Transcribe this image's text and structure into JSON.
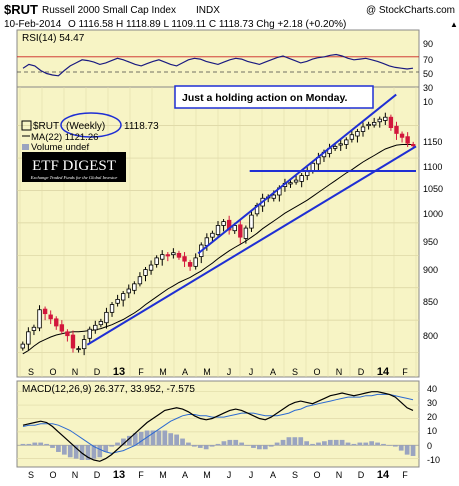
{
  "header": {
    "symbol": "$RUT",
    "name": "Russell 2000 Small Cap Index",
    "exchange": "INDX",
    "copyright": "@ StockCharts.com",
    "date": "10-Feb-2014",
    "ohlc": "O 1116.58  H 1118.89  L 1109.11  C 1118.73  Chg +2.18 (+0.20%)",
    "ohlc_arrow": "▲"
  },
  "rsi_panel": {
    "label": "RSI(14) 54.47",
    "ticks": [
      "90",
      "70",
      "50",
      "30",
      "10"
    ]
  },
  "price_panel": {
    "annotation": "Just a holding action on Monday.",
    "legend_symbol": "$RUT",
    "legend_period": "(Weekly)",
    "legend_value": "1118.73",
    "legend_ma": "MA(22) 1121.26",
    "legend_volume": "Volume undef",
    "logo_title": "ETF DIGEST",
    "logo_sub": "Exchange Traded Funds for the Global Investor",
    "ticks": [
      "1150",
      "1100",
      "1050",
      "1000",
      "950",
      "900",
      "850",
      "800"
    ]
  },
  "macd_panel": {
    "label": "MACD(12,26,9) 26.377, 33.952, -7.575",
    "ticks": [
      "40",
      "30",
      "20",
      "10",
      "0",
      "-10"
    ]
  },
  "x_axis": {
    "labels": [
      "S",
      "O",
      "N",
      "D",
      "13",
      "F",
      "M",
      "A",
      "M",
      "J",
      "J",
      "A",
      "S",
      "O",
      "N",
      "D",
      "14",
      "F"
    ]
  },
  "colors": {
    "panel_bg": "#f7f4c5",
    "up_candle": "#000000",
    "down_candle": "#d2163c",
    "trendline": "#1f2fd4",
    "ma_line": "#000000",
    "rsi_line": "#1a1a80",
    "macd_line": "#000000",
    "signal_line": "#2d6bd1",
    "histogram": "#9aa4c0"
  },
  "chart_data": [
    {
      "type": "candlestick",
      "title": "$RUT Russell 2000 Small Cap Index INDX",
      "period": "Weekly",
      "ylim": [
        770,
        1205
      ],
      "close": [
        813,
        832,
        839,
        866,
        860,
        852,
        841,
        833,
        826,
        807,
        806,
        820,
        836,
        842,
        848,
        862,
        874,
        882,
        891,
        898,
        906,
        917,
        928,
        935,
        946,
        951,
        949,
        954,
        947,
        941,
        933,
        946,
        966,
        977,
        984,
        996,
        1002,
        989,
        996,
        978,
        992,
        1012,
        1027,
        1038,
        1040,
        1043,
        1054,
        1061,
        1062,
        1066,
        1073,
        1079,
        1092,
        1101,
        1109,
        1115,
        1118,
        1122,
        1128,
        1136,
        1141,
        1148,
        1152,
        1155,
        1160,
        1163,
        1147,
        1138,
        1132,
        1123,
        1119
      ],
      "ma22": [
        798,
        803,
        810,
        816,
        820,
        824,
        827,
        829,
        831,
        832,
        832,
        833,
        834,
        835,
        837,
        840,
        843,
        847,
        851,
        856,
        861,
        867,
        874,
        880,
        886,
        892,
        898,
        903,
        908,
        912,
        916,
        921,
        926,
        932,
        938,
        945,
        951,
        957,
        962,
        967,
        972,
        978,
        984,
        991,
        997,
        1003,
        1009,
        1015,
        1020,
        1025,
        1030,
        1035,
        1041,
        1047,
        1053,
        1059,
        1065,
        1071,
        1077,
        1082,
        1088,
        1094,
        1099,
        1104,
        1109,
        1114,
        1117,
        1120,
        1121,
        1121,
        1121
      ],
      "trendlines": [
        {
          "from": {
            "x": 0.17,
            "y": 812
          },
          "to": {
            "x": 1.0,
            "y": 1118
          }
        },
        {
          "from": {
            "x": 0.45,
            "y": 953
          },
          "to": {
            "x": 0.95,
            "y": 1198
          }
        },
        {
          "from": {
            "x": 0.58,
            "y": 1080
          },
          "to": {
            "x": 1.0,
            "y": 1080
          }
        }
      ]
    },
    {
      "type": "line",
      "title": "RSI(14) 54.47",
      "ylim": [
        0,
        100
      ],
      "values": [
        55,
        60,
        58,
        52,
        48,
        46,
        45,
        52,
        58,
        62,
        66,
        65,
        63,
        60,
        62,
        65,
        68,
        66,
        63,
        60,
        58,
        61,
        64,
        66,
        63,
        60,
        58,
        62,
        66,
        68,
        67,
        64,
        62,
        60,
        63,
        66,
        68,
        67,
        64,
        62,
        60,
        63,
        66,
        69,
        71,
        68,
        65,
        62,
        64,
        67,
        69,
        70,
        72,
        73,
        71,
        68,
        66,
        67,
        68,
        66,
        64,
        61,
        58,
        56,
        55,
        54,
        55
      ],
      "reference_lines": [
        70,
        50,
        30
      ]
    },
    {
      "type": "line",
      "title": "MACD(12,26,9) 26.377, 33.952, -7.575",
      "ylim": [
        -14,
        45
      ],
      "macd": [
        15,
        16,
        17,
        18,
        17,
        14,
        10,
        6,
        2,
        -2,
        -6,
        -9,
        -11,
        -12,
        -10,
        -7,
        -3,
        1,
        5,
        9,
        13,
        17,
        20,
        23,
        26,
        27,
        28,
        27,
        25,
        22,
        20,
        19,
        20,
        22,
        24,
        26,
        27,
        26,
        24,
        22,
        20,
        19,
        21,
        24,
        27,
        30,
        32,
        33,
        32,
        31,
        33,
        35,
        37,
        38,
        39,
        38,
        37,
        38,
        39,
        40,
        40,
        39,
        38,
        36,
        32,
        28,
        26
      ],
      "signal": [
        14,
        15,
        15,
        16,
        16,
        16,
        15,
        13,
        11,
        8,
        5,
        2,
        -1,
        -3,
        -5,
        -6,
        -5,
        -4,
        -2,
        0,
        3,
        6,
        9,
        12,
        15,
        18,
        20,
        22,
        23,
        23,
        22,
        22,
        21,
        21,
        21,
        22,
        23,
        24,
        24,
        24,
        23,
        22,
        22,
        22,
        23,
        24,
        26,
        27,
        29,
        30,
        31,
        32,
        33,
        34,
        35,
        36,
        36,
        36,
        37,
        37,
        38,
        38,
        38,
        37,
        36,
        35,
        34
      ],
      "histogram": [
        1,
        1,
        2,
        2,
        1,
        -2,
        -5,
        -7,
        -9,
        -10,
        -11,
        -11,
        -10,
        -9,
        -5,
        -1,
        2,
        5,
        7,
        9,
        10,
        11,
        11,
        11,
        11,
        9,
        8,
        5,
        2,
        -1,
        -2,
        -3,
        -1,
        1,
        3,
        4,
        4,
        2,
        0,
        -2,
        -3,
        -3,
        -1,
        2,
        4,
        6,
        6,
        6,
        3,
        1,
        2,
        3,
        4,
        4,
        4,
        2,
        1,
        2,
        2,
        3,
        2,
        1,
        0,
        -1,
        -4,
        -7,
        -8
      ]
    }
  ]
}
